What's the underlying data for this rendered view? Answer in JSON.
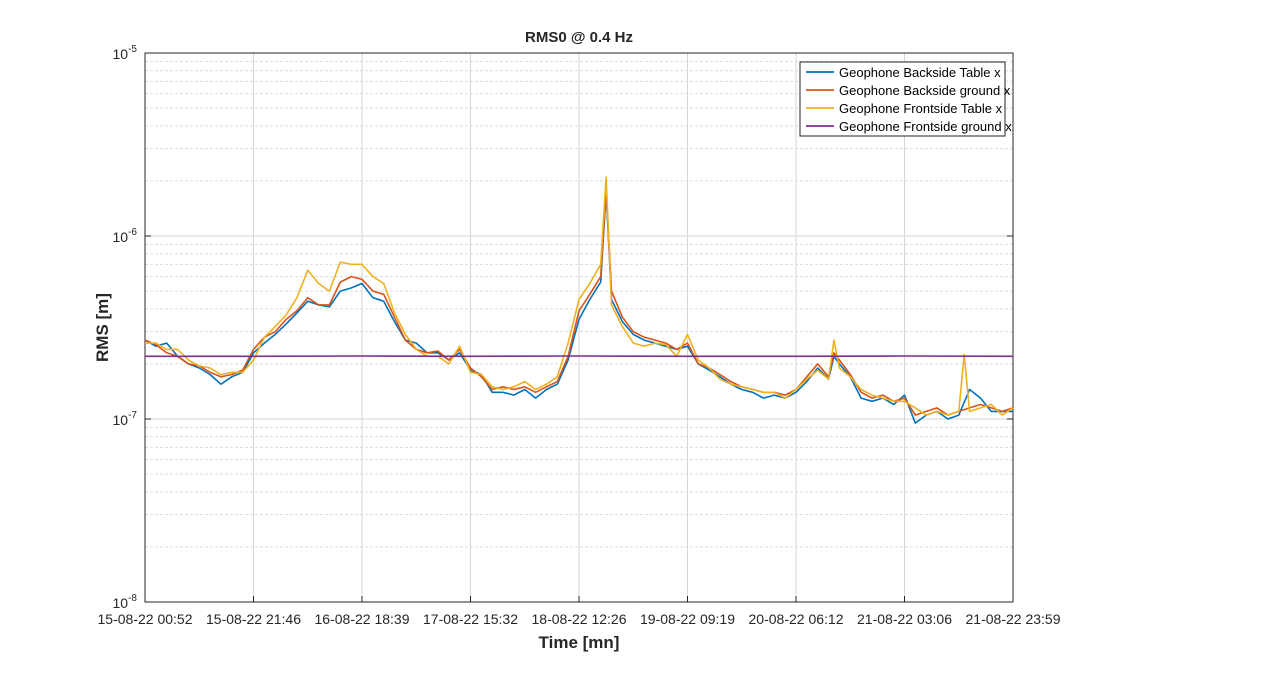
{
  "chart_data": {
    "type": "line",
    "title": "RMS0 @ 0.4 Hz",
    "xlabel": "Time [mn]",
    "ylabel": "RMS [m]",
    "yscale": "log",
    "ylim": [
      1e-08,
      1e-05
    ],
    "xlim": [
      0,
      8
    ],
    "y_ticks": [
      {
        "base": "10",
        "exp": "-8",
        "value": 1e-08
      },
      {
        "base": "10",
        "exp": "-7",
        "value": 1e-07
      },
      {
        "base": "10",
        "exp": "-6",
        "value": 1e-06
      },
      {
        "base": "10",
        "exp": "-5",
        "value": 1e-05
      }
    ],
    "x_ticks": [
      {
        "pos": 0,
        "label": "15-08-22 00:52"
      },
      {
        "pos": 1,
        "label": "15-08-22 21:46"
      },
      {
        "pos": 2,
        "label": "16-08-22 18:39"
      },
      {
        "pos": 3,
        "label": "17-08-22 15:32"
      },
      {
        "pos": 4,
        "label": "18-08-22 12:26"
      },
      {
        "pos": 5,
        "label": "19-08-22 09:19"
      },
      {
        "pos": 6,
        "label": "20-08-22 06:12"
      },
      {
        "pos": 7,
        "label": "21-08-22 03:06"
      },
      {
        "pos": 8,
        "label": "21-08-22 23:59"
      }
    ],
    "grid": true,
    "legend_position": "top-right",
    "series": [
      {
        "name": "Geophone Backside Table x",
        "color": "#0072BD",
        "points": [
          [
            0,
            2.7e-07
          ],
          [
            0.1,
            2.5e-07
          ],
          [
            0.2,
            2.6e-07
          ],
          [
            0.3,
            2.2e-07
          ],
          [
            0.4,
            2e-07
          ],
          [
            0.5,
            1.9e-07
          ],
          [
            0.6,
            1.75e-07
          ],
          [
            0.7,
            1.55e-07
          ],
          [
            0.8,
            1.7e-07
          ],
          [
            0.9,
            1.8e-07
          ],
          [
            1.0,
            2.3e-07
          ],
          [
            1.1,
            2.6e-07
          ],
          [
            1.2,
            2.9e-07
          ],
          [
            1.3,
            3.3e-07
          ],
          [
            1.4,
            3.8e-07
          ],
          [
            1.5,
            4.4e-07
          ],
          [
            1.6,
            4.2e-07
          ],
          [
            1.7,
            4.1e-07
          ],
          [
            1.8,
            5e-07
          ],
          [
            1.9,
            5.2e-07
          ],
          [
            2.0,
            5.5e-07
          ],
          [
            2.1,
            4.6e-07
          ],
          [
            2.2,
            4.4e-07
          ],
          [
            2.3,
            3.4e-07
          ],
          [
            2.4,
            2.7e-07
          ],
          [
            2.5,
            2.6e-07
          ],
          [
            2.6,
            2.3e-07
          ],
          [
            2.7,
            2.3e-07
          ],
          [
            2.8,
            2.1e-07
          ],
          [
            2.9,
            2.3e-07
          ],
          [
            3.0,
            1.85e-07
          ],
          [
            3.1,
            1.75e-07
          ],
          [
            3.2,
            1.4e-07
          ],
          [
            3.3,
            1.4e-07
          ],
          [
            3.4,
            1.35e-07
          ],
          [
            3.5,
            1.45e-07
          ],
          [
            3.6,
            1.3e-07
          ],
          [
            3.7,
            1.45e-07
          ],
          [
            3.8,
            1.55e-07
          ],
          [
            3.9,
            2.1e-07
          ],
          [
            4.0,
            3.5e-07
          ],
          [
            4.1,
            4.5e-07
          ],
          [
            4.2,
            5.6e-07
          ],
          [
            4.25,
            1.75e-06
          ],
          [
            4.3,
            4.5e-07
          ],
          [
            4.4,
            3.4e-07
          ],
          [
            4.5,
            2.9e-07
          ],
          [
            4.6,
            2.7e-07
          ],
          [
            4.7,
            2.6e-07
          ],
          [
            4.8,
            2.5e-07
          ],
          [
            4.9,
            2.4e-07
          ],
          [
            5.0,
            2.5e-07
          ],
          [
            5.1,
            2e-07
          ],
          [
            5.2,
            1.85e-07
          ],
          [
            5.3,
            1.7e-07
          ],
          [
            5.4,
            1.55e-07
          ],
          [
            5.5,
            1.45e-07
          ],
          [
            5.6,
            1.4e-07
          ],
          [
            5.7,
            1.3e-07
          ],
          [
            5.8,
            1.35e-07
          ],
          [
            5.9,
            1.3e-07
          ],
          [
            6.0,
            1.4e-07
          ],
          [
            6.1,
            1.6e-07
          ],
          [
            6.2,
            1.9e-07
          ],
          [
            6.3,
            1.65e-07
          ],
          [
            6.35,
            2.2e-07
          ],
          [
            6.4,
            2e-07
          ],
          [
            6.5,
            1.7e-07
          ],
          [
            6.6,
            1.3e-07
          ],
          [
            6.7,
            1.25e-07
          ],
          [
            6.8,
            1.3e-07
          ],
          [
            6.9,
            1.2e-07
          ],
          [
            7.0,
            1.35e-07
          ],
          [
            7.1,
            9.5e-08
          ],
          [
            7.2,
            1.05e-07
          ],
          [
            7.3,
            1.1e-07
          ],
          [
            7.4,
            1e-07
          ],
          [
            7.5,
            1.05e-07
          ],
          [
            7.6,
            1.45e-07
          ],
          [
            7.7,
            1.3e-07
          ],
          [
            7.8,
            1.1e-07
          ],
          [
            7.9,
            1.1e-07
          ],
          [
            8.0,
            1.1e-07
          ]
        ]
      },
      {
        "name": "Geophone Backside ground x",
        "color": "#D95319",
        "points": [
          [
            0,
            2.7e-07
          ],
          [
            0.1,
            2.55e-07
          ],
          [
            0.2,
            2.3e-07
          ],
          [
            0.3,
            2.2e-07
          ],
          [
            0.4,
            2e-07
          ],
          [
            0.5,
            1.95e-07
          ],
          [
            0.6,
            1.8e-07
          ],
          [
            0.7,
            1.7e-07
          ],
          [
            0.8,
            1.75e-07
          ],
          [
            0.9,
            1.85e-07
          ],
          [
            1.0,
            2.4e-07
          ],
          [
            1.1,
            2.8e-07
          ],
          [
            1.2,
            3e-07
          ],
          [
            1.3,
            3.5e-07
          ],
          [
            1.4,
            3.9e-07
          ],
          [
            1.5,
            4.6e-07
          ],
          [
            1.6,
            4.2e-07
          ],
          [
            1.7,
            4.2e-07
          ],
          [
            1.8,
            5.6e-07
          ],
          [
            1.9,
            6e-07
          ],
          [
            2.0,
            5.8e-07
          ],
          [
            2.1,
            5e-07
          ],
          [
            2.2,
            4.8e-07
          ],
          [
            2.3,
            3.6e-07
          ],
          [
            2.4,
            2.7e-07
          ],
          [
            2.5,
            2.4e-07
          ],
          [
            2.6,
            2.3e-07
          ],
          [
            2.7,
            2.35e-07
          ],
          [
            2.8,
            2.1e-07
          ],
          [
            2.9,
            2.4e-07
          ],
          [
            3.0,
            1.9e-07
          ],
          [
            3.1,
            1.7e-07
          ],
          [
            3.2,
            1.45e-07
          ],
          [
            3.3,
            1.5e-07
          ],
          [
            3.4,
            1.45e-07
          ],
          [
            3.5,
            1.5e-07
          ],
          [
            3.6,
            1.4e-07
          ],
          [
            3.7,
            1.5e-07
          ],
          [
            3.8,
            1.6e-07
          ],
          [
            3.9,
            2.2e-07
          ],
          [
            4.0,
            3.9e-07
          ],
          [
            4.1,
            4.8e-07
          ],
          [
            4.2,
            6e-07
          ],
          [
            4.25,
            1.8e-06
          ],
          [
            4.3,
            5e-07
          ],
          [
            4.4,
            3.6e-07
          ],
          [
            4.5,
            3e-07
          ],
          [
            4.6,
            2.8e-07
          ],
          [
            4.7,
            2.7e-07
          ],
          [
            4.8,
            2.6e-07
          ],
          [
            4.9,
            2.4e-07
          ],
          [
            5.0,
            2.6e-07
          ],
          [
            5.1,
            2e-07
          ],
          [
            5.2,
            1.9e-07
          ],
          [
            5.3,
            1.75e-07
          ],
          [
            5.4,
            1.6e-07
          ],
          [
            5.5,
            1.5e-07
          ],
          [
            5.6,
            1.45e-07
          ],
          [
            5.7,
            1.4e-07
          ],
          [
            5.8,
            1.4e-07
          ],
          [
            5.9,
            1.35e-07
          ],
          [
            6.0,
            1.45e-07
          ],
          [
            6.1,
            1.7e-07
          ],
          [
            6.2,
            2e-07
          ],
          [
            6.3,
            1.7e-07
          ],
          [
            6.35,
            2.3e-07
          ],
          [
            6.4,
            2.1e-07
          ],
          [
            6.5,
            1.75e-07
          ],
          [
            6.6,
            1.4e-07
          ],
          [
            6.7,
            1.3e-07
          ],
          [
            6.8,
            1.35e-07
          ],
          [
            6.9,
            1.25e-07
          ],
          [
            7.0,
            1.3e-07
          ],
          [
            7.1,
            1.05e-07
          ],
          [
            7.2,
            1.1e-07
          ],
          [
            7.3,
            1.15e-07
          ],
          [
            7.4,
            1.05e-07
          ],
          [
            7.5,
            1.1e-07
          ],
          [
            7.6,
            1.15e-07
          ],
          [
            7.7,
            1.2e-07
          ],
          [
            7.8,
            1.15e-07
          ],
          [
            7.9,
            1.1e-07
          ],
          [
            8.0,
            1.15e-07
          ]
        ]
      },
      {
        "name": "Geophone Frontside Table x",
        "color": "#EDB120",
        "points": [
          [
            0,
            2.6e-07
          ],
          [
            0.1,
            2.6e-07
          ],
          [
            0.2,
            2.4e-07
          ],
          [
            0.3,
            2.4e-07
          ],
          [
            0.4,
            2.1e-07
          ],
          [
            0.5,
            1.95e-07
          ],
          [
            0.6,
            1.9e-07
          ],
          [
            0.7,
            1.75e-07
          ],
          [
            0.8,
            1.8e-07
          ],
          [
            0.9,
            1.8e-07
          ],
          [
            1.0,
            2.1e-07
          ],
          [
            1.1,
            2.8e-07
          ],
          [
            1.2,
            3.2e-07
          ],
          [
            1.3,
            3.7e-07
          ],
          [
            1.4,
            4.6e-07
          ],
          [
            1.5,
            6.5e-07
          ],
          [
            1.6,
            5.5e-07
          ],
          [
            1.7,
            5e-07
          ],
          [
            1.8,
            7.2e-07
          ],
          [
            1.9,
            7e-07
          ],
          [
            2.0,
            7e-07
          ],
          [
            2.1,
            6e-07
          ],
          [
            2.2,
            5.5e-07
          ],
          [
            2.3,
            3.8e-07
          ],
          [
            2.4,
            2.9e-07
          ],
          [
            2.5,
            2.4e-07
          ],
          [
            2.6,
            2.2e-07
          ],
          [
            2.7,
            2.2e-07
          ],
          [
            2.8,
            2e-07
          ],
          [
            2.9,
            2.5e-07
          ],
          [
            3.0,
            1.8e-07
          ],
          [
            3.1,
            1.75e-07
          ],
          [
            3.2,
            1.5e-07
          ],
          [
            3.3,
            1.45e-07
          ],
          [
            3.4,
            1.5e-07
          ],
          [
            3.5,
            1.6e-07
          ],
          [
            3.6,
            1.45e-07
          ],
          [
            3.7,
            1.55e-07
          ],
          [
            3.8,
            1.7e-07
          ],
          [
            3.9,
            2.6e-07
          ],
          [
            4.0,
            4.5e-07
          ],
          [
            4.1,
            5.5e-07
          ],
          [
            4.2,
            7e-07
          ],
          [
            4.25,
            2.1e-06
          ],
          [
            4.3,
            4.2e-07
          ],
          [
            4.4,
            3.2e-07
          ],
          [
            4.5,
            2.6e-07
          ],
          [
            4.6,
            2.5e-07
          ],
          [
            4.7,
            2.6e-07
          ],
          [
            4.8,
            2.55e-07
          ],
          [
            4.9,
            2.2e-07
          ],
          [
            5.0,
            2.9e-07
          ],
          [
            5.1,
            2.1e-07
          ],
          [
            5.2,
            1.9e-07
          ],
          [
            5.3,
            1.65e-07
          ],
          [
            5.4,
            1.55e-07
          ],
          [
            5.5,
            1.5e-07
          ],
          [
            5.6,
            1.45e-07
          ],
          [
            5.7,
            1.4e-07
          ],
          [
            5.8,
            1.4e-07
          ],
          [
            5.9,
            1.3e-07
          ],
          [
            6.0,
            1.45e-07
          ],
          [
            6.1,
            1.65e-07
          ],
          [
            6.2,
            1.85e-07
          ],
          [
            6.3,
            1.65e-07
          ],
          [
            6.35,
            2.7e-07
          ],
          [
            6.4,
            1.9e-07
          ],
          [
            6.5,
            1.7e-07
          ],
          [
            6.6,
            1.45e-07
          ],
          [
            6.7,
            1.35e-07
          ],
          [
            6.8,
            1.3e-07
          ],
          [
            6.9,
            1.25e-07
          ],
          [
            7.0,
            1.25e-07
          ],
          [
            7.1,
            1.15e-07
          ],
          [
            7.2,
            1.05e-07
          ],
          [
            7.3,
            1.1e-07
          ],
          [
            7.4,
            1.05e-07
          ],
          [
            7.5,
            1.1e-07
          ],
          [
            7.55,
            2.25e-07
          ],
          [
            7.6,
            1.1e-07
          ],
          [
            7.7,
            1.15e-07
          ],
          [
            7.8,
            1.2e-07
          ],
          [
            7.9,
            1.05e-07
          ],
          [
            8.0,
            1.15e-07
          ]
        ]
      },
      {
        "name": "Geophone Frontside ground x",
        "color": "#7E2F8E",
        "points": [
          [
            0,
            2.2e-07
          ],
          [
            1,
            2.2e-07
          ],
          [
            2,
            2.21e-07
          ],
          [
            3,
            2.2e-07
          ],
          [
            4,
            2.21e-07
          ],
          [
            5,
            2.2e-07
          ],
          [
            6,
            2.2e-07
          ],
          [
            7,
            2.21e-07
          ],
          [
            8,
            2.2e-07
          ]
        ]
      }
    ]
  }
}
